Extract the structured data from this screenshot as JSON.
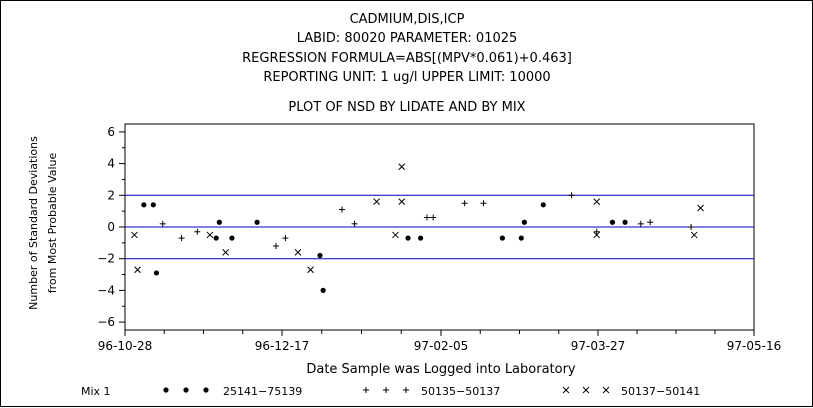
{
  "chart_data": {
    "type": "scatter",
    "title_lines": [
      "CADMIUM,DIS,ICP",
      "LABID:  80020  PARAMETER:  01025",
      "REGRESSION  FORMULA=ABS[(MPV*0.061)+0.463]",
      "REPORTING  UNIT:  1 ug/l    UPPER  LIMIT:  10000"
    ],
    "subtitle": "PLOT  OF  NSD  BY  LIDATE  AND  BY  MIX",
    "xlabel": "Date  Sample  was  Logged  into  Laboratory",
    "ylabel_lines": [
      "Number  of  Standard  Deviations",
      "from  Most  Probable  Value"
    ],
    "x_ticks": [
      "96-10-28",
      "96-12-17",
      "97-02-05",
      "97-03-27",
      "97-05-16"
    ],
    "xlim": [
      "1996-10-28",
      "1997-05-16"
    ],
    "y_ticks": [
      "6",
      "4",
      "2",
      "0",
      "-2",
      "-4",
      "-6"
    ],
    "ylim": [
      -6.5,
      6.5
    ],
    "reference_lines": [
      2,
      0,
      -2
    ],
    "legend": {
      "title": "Mix  1",
      "position": "bottom",
      "entries": [
        {
          "symbol": "dot",
          "label": "25141−75139"
        },
        {
          "symbol": "plus",
          "label": "50135−50137"
        },
        {
          "symbol": "cross",
          "label": "50137−50141"
        }
      ]
    },
    "series": [
      {
        "name": "25141−75139",
        "symbol": "dot",
        "points": [
          [
            "1996-11-03",
            1.4
          ],
          [
            "1996-11-06",
            1.4
          ],
          [
            "1996-11-07",
            -2.9
          ],
          [
            "1996-11-26",
            -0.7
          ],
          [
            "1996-11-27",
            0.3
          ],
          [
            "1996-12-01",
            -0.7
          ],
          [
            "1996-12-09",
            0.3
          ],
          [
            "1996-12-29",
            -1.8
          ],
          [
            "1996-12-30",
            -4.0
          ],
          [
            "1997-01-26",
            -0.7
          ],
          [
            "1997-01-30",
            -0.7
          ],
          [
            "1997-02-25",
            -0.7
          ],
          [
            "1997-03-03",
            -0.7
          ],
          [
            "1997-03-04",
            0.3
          ],
          [
            "1997-03-10",
            1.4
          ],
          [
            "1997-04-01",
            0.3
          ],
          [
            "1997-04-05",
            0.3
          ]
        ]
      },
      {
        "name": "50135−50137",
        "symbol": "plus",
        "points": [
          [
            "1996-11-09",
            0.2
          ],
          [
            "1996-11-15",
            -0.7
          ],
          [
            "1996-11-20",
            -0.3
          ],
          [
            "1996-12-15",
            -1.2
          ],
          [
            "1996-12-18",
            -0.7
          ],
          [
            "1997-01-05",
            1.1
          ],
          [
            "1997-01-09",
            0.2
          ],
          [
            "1997-02-01",
            0.6
          ],
          [
            "1997-02-03",
            0.6
          ],
          [
            "1997-02-13",
            1.5
          ],
          [
            "1997-02-19",
            1.5
          ],
          [
            "1997-03-19",
            2.0
          ],
          [
            "1997-03-27",
            -0.3
          ],
          [
            "1997-04-10",
            0.2
          ],
          [
            "1997-04-13",
            0.3
          ],
          [
            "1997-04-26",
            0.0
          ]
        ]
      },
      {
        "name": "50137−50141",
        "symbol": "cross",
        "points": [
          [
            "1996-10-31",
            -0.5
          ],
          [
            "1996-11-01",
            -2.7
          ],
          [
            "1996-11-24",
            -0.5
          ],
          [
            "1996-11-29",
            -1.6
          ],
          [
            "1996-12-22",
            -1.6
          ],
          [
            "1996-12-26",
            -2.7
          ],
          [
            "1997-01-16",
            1.6
          ],
          [
            "1997-01-22",
            -0.5
          ],
          [
            "1997-01-24",
            3.8
          ],
          [
            "1997-01-24",
            1.6
          ],
          [
            "1997-03-27",
            1.6
          ],
          [
            "1997-03-27",
            -0.5
          ],
          [
            "1997-04-27",
            -0.5
          ],
          [
            "1997-04-29",
            1.2
          ]
        ]
      }
    ]
  }
}
